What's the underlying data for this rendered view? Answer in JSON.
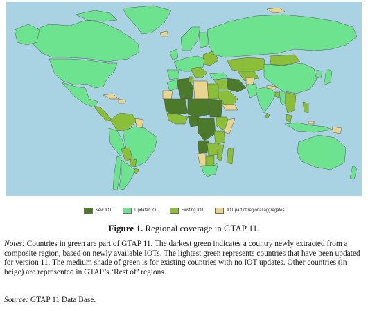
{
  "figure": {
    "caption_label": "Figure 1.",
    "caption_text": " Regional coverage in GTAP 11."
  },
  "legend": {
    "items": [
      {
        "label": "New IOT",
        "color": "#4c7a2a"
      },
      {
        "label": "Updated IOT",
        "color": "#6ee38f"
      },
      {
        "label": "Existing IOT",
        "color": "#8bbf3a"
      },
      {
        "label": "IOT part of regional aggregates",
        "color": "#e8d58f"
      }
    ]
  },
  "colors": {
    "ocean": "#a9d3e3",
    "new_iot": "#4c7a2a",
    "updated_iot": "#6ee38f",
    "existing_iot": "#8bbf3a",
    "regional_aggregate": "#e8d58f",
    "border": "#555555"
  },
  "notes": {
    "label": "Notes:",
    "text": " Countries in green are part of GTAP 11. The darkest green indicates a country newly extracted from a composite region, based on newly available IOTs. The lightest green represents countries that have been updated for version 11. The medium shade of green is for existing countries with no IOT updates. Other countries (in beige) are represented in GTAP’s ‘Rest of’ regions."
  },
  "source": {
    "label": "Source:",
    "text": " GTAP 11 Data Base."
  }
}
